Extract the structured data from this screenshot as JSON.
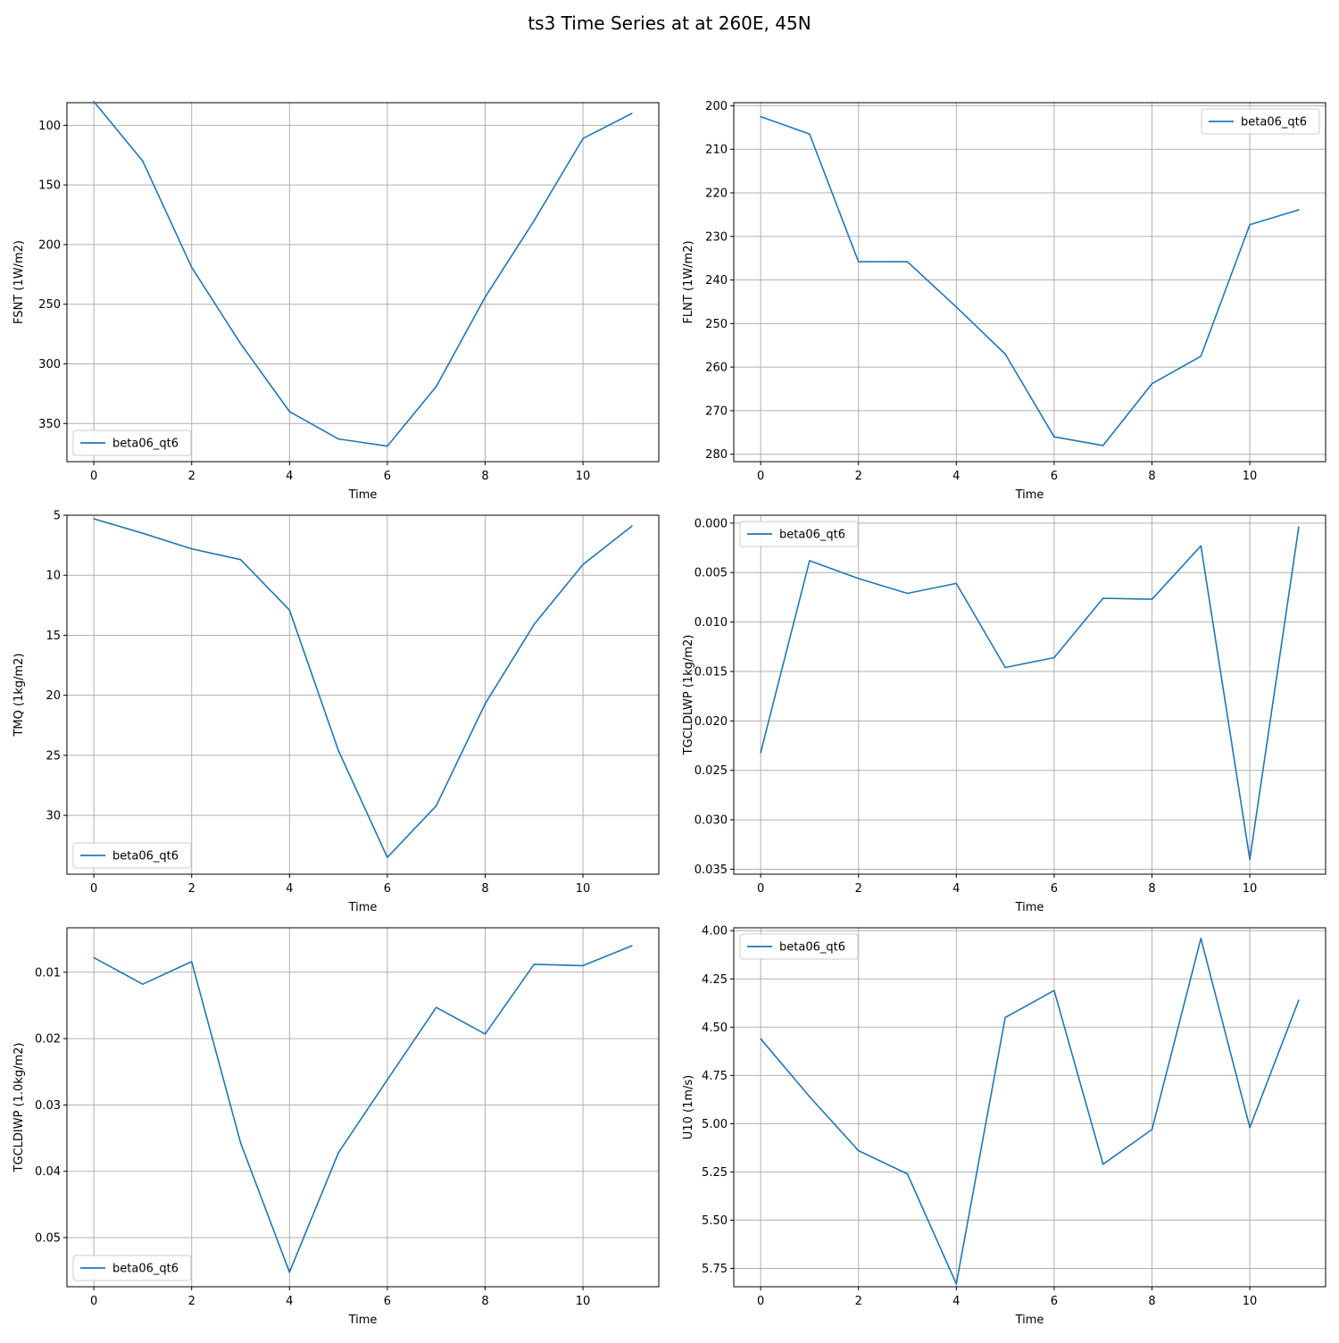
{
  "title": "ts3 Time Series at at 260E, 45N",
  "colors": {
    "line": "#1f77b4",
    "grid": "#b0b0b0",
    "axis": "#000000"
  },
  "chart_data": [
    {
      "type": "line",
      "xlabel": "Time",
      "ylabel": "FSNT (1W/m2)",
      "y_inverted": true,
      "grid": true,
      "legend_loc": "lower-left",
      "xlim": [
        -0.55,
        11.55
      ],
      "ylim": [
        81,
        382
      ],
      "xticks": [
        0,
        2,
        4,
        6,
        8,
        10
      ],
      "xticklabels": [
        "0",
        "2",
        "4",
        "6",
        "8",
        "10"
      ],
      "yticks": [
        100,
        150,
        200,
        250,
        300,
        350
      ],
      "yticklabels": [
        "100",
        "150",
        "200",
        "250",
        "300",
        "350"
      ],
      "x": [
        0,
        1,
        2,
        3,
        4,
        5,
        6,
        7,
        8,
        9,
        10,
        11
      ],
      "series": [
        {
          "name": "beta06_qt6",
          "values": [
            80,
            130,
            219,
            283,
            340,
            363,
            369,
            319,
            244,
            180,
            111,
            90
          ]
        }
      ]
    },
    {
      "type": "line",
      "xlabel": "Time",
      "ylabel": "FLNT (1W/m2)",
      "y_inverted": true,
      "grid": true,
      "legend_loc": "upper-right",
      "xlim": [
        -0.55,
        11.55
      ],
      "ylim": [
        199.3,
        281.7
      ],
      "xticks": [
        0,
        2,
        4,
        6,
        8,
        10
      ],
      "xticklabels": [
        "0",
        "2",
        "4",
        "6",
        "8",
        "10"
      ],
      "yticks": [
        200,
        210,
        220,
        230,
        240,
        250,
        260,
        270,
        280
      ],
      "yticklabels": [
        "200",
        "210",
        "220",
        "230",
        "240",
        "250",
        "260",
        "270",
        "280"
      ],
      "x": [
        0,
        1,
        2,
        3,
        4,
        5,
        6,
        7,
        8,
        9,
        10,
        11
      ],
      "series": [
        {
          "name": "beta06_qt6",
          "values": [
            202.5,
            206.5,
            235.8,
            235.8,
            246.2,
            257.0,
            276.0,
            278.0,
            263.8,
            257.5,
            227.3,
            223.9
          ]
        }
      ]
    },
    {
      "type": "line",
      "xlabel": "Time",
      "ylabel": "TMQ (1kg/m2)",
      "y_inverted": true,
      "grid": true,
      "legend_loc": "lower-left",
      "xlim": [
        -0.55,
        11.55
      ],
      "ylim": [
        5.0,
        34.9
      ],
      "xticks": [
        0,
        2,
        4,
        6,
        8,
        10
      ],
      "xticklabels": [
        "0",
        "2",
        "4",
        "6",
        "8",
        "10"
      ],
      "yticks": [
        5,
        10,
        15,
        20,
        25,
        30
      ],
      "yticklabels": [
        "5",
        "10",
        "15",
        "20",
        "25",
        "30"
      ],
      "x": [
        0,
        1,
        2,
        3,
        4,
        5,
        6,
        7,
        8,
        9,
        10,
        11
      ],
      "series": [
        {
          "name": "beta06_qt6",
          "values": [
            5.3,
            6.5,
            7.8,
            8.7,
            12.9,
            24.6,
            33.5,
            29.2,
            20.7,
            14.1,
            9.1,
            5.9
          ]
        }
      ]
    },
    {
      "type": "line",
      "xlabel": "Time",
      "ylabel": "TGCLDLWP (1kg/m2)",
      "y_inverted": true,
      "grid": true,
      "legend_loc": "upper-left",
      "xlim": [
        -0.55,
        11.55
      ],
      "ylim": [
        -0.0008,
        0.0355
      ],
      "xticks": [
        0,
        2,
        4,
        6,
        8,
        10
      ],
      "xticklabels": [
        "0",
        "2",
        "4",
        "6",
        "8",
        "10"
      ],
      "yticks": [
        0.0,
        0.005,
        0.01,
        0.015,
        0.02,
        0.025,
        0.03,
        0.035
      ],
      "yticklabels": [
        "0.000",
        "0.005",
        "0.010",
        "0.015",
        "0.020",
        "0.025",
        "0.030",
        "0.035"
      ],
      "x": [
        0,
        1,
        2,
        3,
        4,
        5,
        6,
        7,
        8,
        9,
        10,
        11
      ],
      "series": [
        {
          "name": "beta06_qt6",
          "values": [
            0.0232,
            0.0038,
            0.0056,
            0.0071,
            0.0061,
            0.0146,
            0.0136,
            0.0076,
            0.0077,
            0.0023,
            0.034,
            0.0004
          ]
        }
      ]
    },
    {
      "type": "line",
      "xlabel": "Time",
      "ylabel": "TGCLDIWP (1.0kg/m2)",
      "y_inverted": true,
      "grid": true,
      "legend_loc": "lower-left",
      "xlim": [
        -0.55,
        11.55
      ],
      "ylim": [
        0.0033,
        0.0574
      ],
      "xticks": [
        0,
        2,
        4,
        6,
        8,
        10
      ],
      "xticklabels": [
        "0",
        "2",
        "4",
        "6",
        "8",
        "10"
      ],
      "yticks": [
        0.01,
        0.02,
        0.03,
        0.04,
        0.05
      ],
      "yticklabels": [
        "0.01",
        "0.02",
        "0.03",
        "0.04",
        "0.05"
      ],
      "x": [
        0,
        1,
        2,
        3,
        4,
        5,
        6,
        7,
        8,
        9,
        10,
        11
      ],
      "series": [
        {
          "name": "beta06_qt6",
          "values": [
            0.0078,
            0.0118,
            0.0084,
            0.0357,
            0.0552,
            0.0372,
            0.0262,
            0.0153,
            0.0193,
            0.0088,
            0.009,
            0.006
          ]
        }
      ]
    },
    {
      "type": "line",
      "xlabel": "Time",
      "ylabel": "U10 (1m/s)",
      "y_inverted": true,
      "grid": true,
      "legend_loc": "upper-left",
      "xlim": [
        -0.55,
        11.55
      ],
      "ylim": [
        3.985,
        5.845
      ],
      "xticks": [
        0,
        2,
        4,
        6,
        8,
        10
      ],
      "xticklabels": [
        "0",
        "2",
        "4",
        "6",
        "8",
        "10"
      ],
      "yticks": [
        4.0,
        4.25,
        4.5,
        4.75,
        5.0,
        5.25,
        5.5,
        5.75
      ],
      "yticklabels": [
        "4.00",
        "4.25",
        "4.50",
        "4.75",
        "5.00",
        "5.25",
        "5.50",
        "5.75"
      ],
      "x": [
        0,
        1,
        2,
        3,
        4,
        5,
        6,
        7,
        8,
        9,
        10,
        11
      ],
      "series": [
        {
          "name": "beta06_qt6",
          "values": [
            4.56,
            4.86,
            5.14,
            5.26,
            5.83,
            4.45,
            4.31,
            5.21,
            5.03,
            4.04,
            5.02,
            4.36
          ]
        }
      ]
    }
  ]
}
